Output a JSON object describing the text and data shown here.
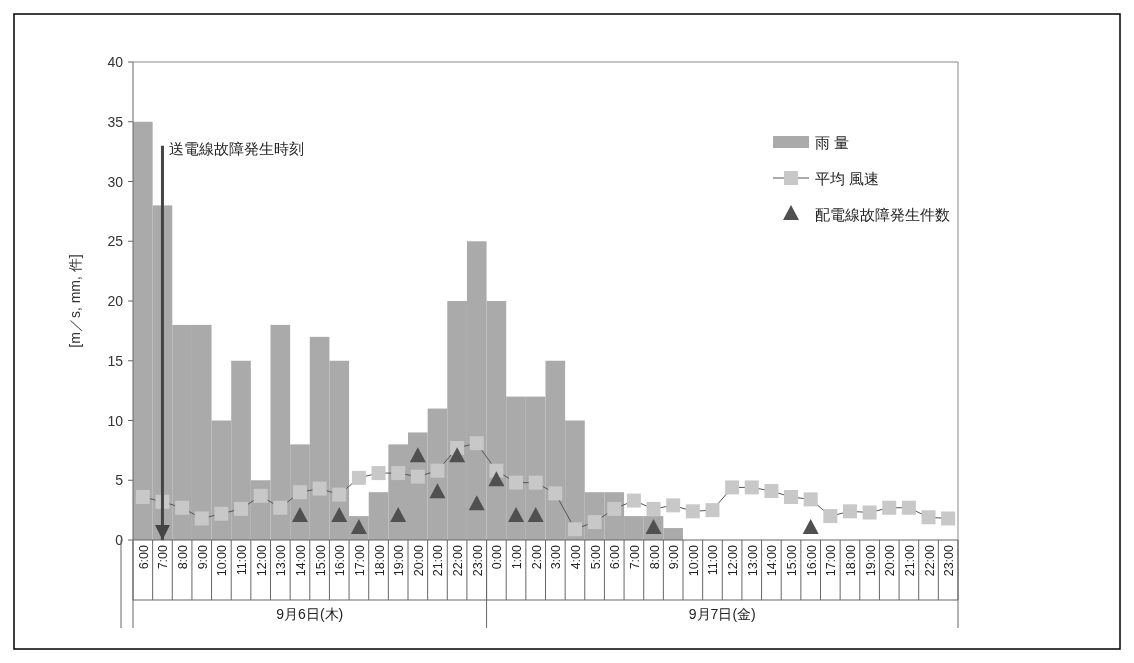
{
  "chart_data": {
    "type": "bar",
    "ylabel": "[m／s, mm, 件]",
    "ylim": [
      0,
      40
    ],
    "yticks": [
      0,
      5,
      10,
      15,
      20,
      25,
      30,
      35,
      40
    ],
    "grid": false,
    "legend": "top right",
    "categories": [
      "6:00",
      "7:00",
      "8:00",
      "9:00",
      "10:00",
      "11:00",
      "12:00",
      "13:00",
      "14:00",
      "15:00",
      "16:00",
      "17:00",
      "18:00",
      "19:00",
      "20:00",
      "21:00",
      "22:00",
      "23:00",
      "0:00",
      "1:00",
      "2:00",
      "3:00",
      "4:00",
      "5:00",
      "6:00",
      "7:00",
      "8:00",
      "9:00",
      "10:00",
      "11:00",
      "12:00",
      "13:00",
      "14:00",
      "15:00",
      "16:00",
      "17:00",
      "18:00",
      "19:00",
      "20:00",
      "21:00",
      "22:00",
      "23:00"
    ],
    "series": [
      {
        "name": "雨 量",
        "color": "#aaaaaa",
        "values": [
          35,
          28,
          18,
          18,
          10,
          15,
          5,
          18,
          8,
          17,
          15,
          2,
          4,
          8,
          9,
          11,
          20,
          25,
          20,
          12,
          12,
          15,
          10,
          4,
          4,
          2,
          2,
          1,
          0,
          0,
          0,
          0,
          0,
          0,
          0,
          0,
          0,
          0,
          0,
          0,
          0,
          0
        ]
      },
      {
        "name": "平均 風速",
        "type": "line",
        "color": "#c8c8c8",
        "marker": "square",
        "line_style": "solid",
        "values": [
          3.6,
          3.2,
          2.7,
          1.8,
          2.2,
          2.6,
          3.7,
          2.7,
          4.0,
          4.3,
          3.8,
          5.2,
          5.6,
          5.6,
          5.3,
          5.8,
          7.7,
          8.1,
          5.8,
          4.8,
          4.8,
          3.9,
          0.9,
          1.5,
          2.6,
          3.3,
          2.6,
          2.9,
          2.4,
          2.5,
          4.4,
          4.4,
          4.1,
          3.6,
          3.4,
          2.0,
          2.4,
          2.3,
          2.7,
          2.7,
          1.9,
          1.8
        ]
      },
      {
        "name": "配電線故障発生件数",
        "type": "scatter",
        "color": "#505050",
        "marker": "triangle",
        "values": [
          null,
          null,
          null,
          null,
          null,
          null,
          null,
          null,
          2,
          null,
          2,
          1,
          null,
          2,
          7,
          4,
          7,
          3,
          5,
          2,
          2,
          null,
          null,
          null,
          null,
          null,
          1,
          null,
          null,
          null,
          null,
          null,
          null,
          null,
          1,
          null,
          null,
          null,
          null,
          null,
          null,
          null
        ]
      }
    ],
    "ref_lines": [
      {
        "axis": "x",
        "value": "7:00",
        "label": "送電線故障発生時刻",
        "color": "#444444"
      }
    ],
    "annotations": [
      "9月6日(木)",
      "9月7日(金)"
    ]
  }
}
